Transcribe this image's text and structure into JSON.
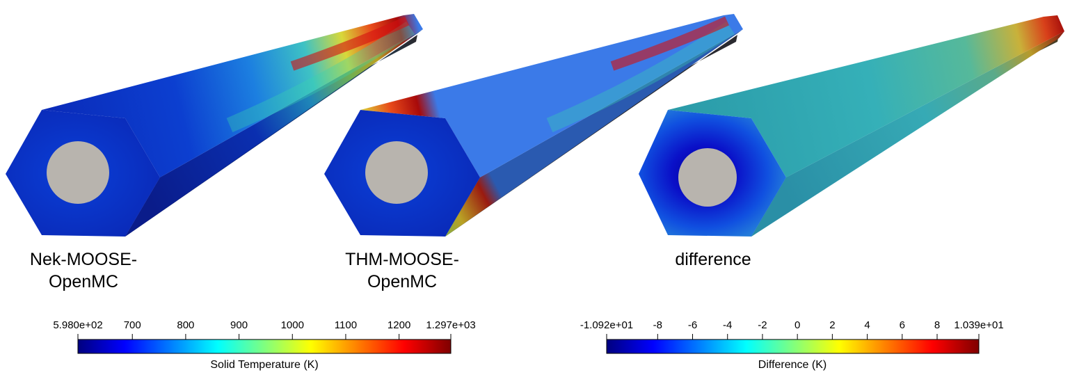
{
  "labels": {
    "panel1": [
      "Nek-MOOSE-",
      "OpenMC"
    ],
    "panel2": [
      "THM-MOOSE-",
      "OpenMC"
    ],
    "panel3": "difference"
  },
  "colorbars": [
    {
      "title": "Solid Temperature (K)",
      "ticks": [
        "5.980e+02",
        "700",
        "800",
        "900",
        "1000",
        "1100",
        "1200",
        "1.297e+03"
      ],
      "tick_values": [
        598,
        700,
        800,
        900,
        1000,
        1100,
        1200,
        1297
      ],
      "range": [
        598,
        1297
      ]
    },
    {
      "title": "Difference (K)",
      "ticks": [
        "-1.092e+01",
        "-8",
        "-6",
        "-4",
        "-2",
        "0",
        "2",
        "4",
        "6",
        "8",
        "1.039e+01"
      ],
      "tick_values": [
        -10.92,
        -8,
        -6,
        -4,
        -2,
        0,
        2,
        4,
        6,
        8,
        10.39
      ],
      "range": [
        -10.92,
        10.39
      ]
    }
  ],
  "colors": {
    "pellet": "#b8b4ae",
    "jet": [
      "#00007f",
      "#0000ff",
      "#007fff",
      "#00ffff",
      "#7fff7f",
      "#ffff00",
      "#ff7f00",
      "#ff0000",
      "#7f0000"
    ]
  }
}
